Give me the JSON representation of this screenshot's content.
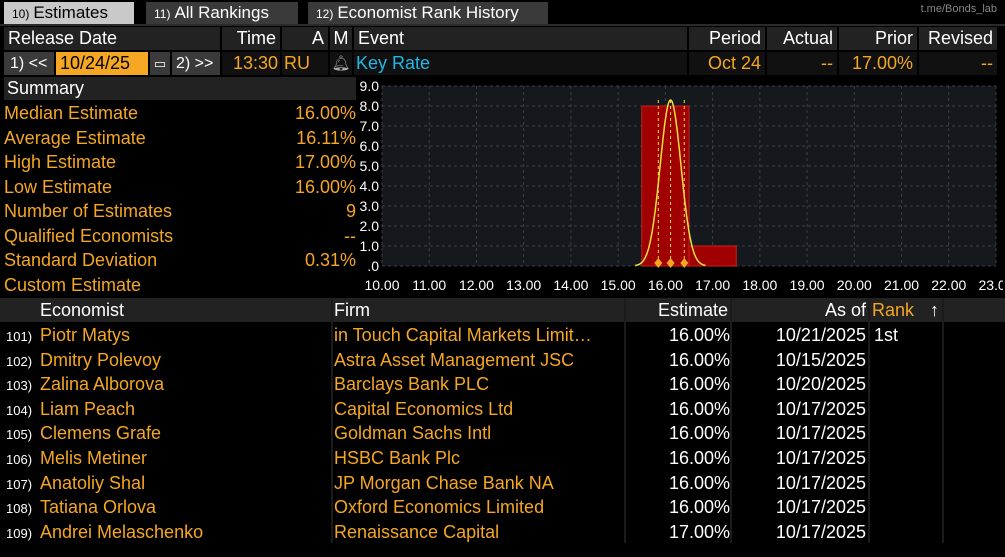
{
  "watermark": "t.me/Bonds_lab",
  "tabs": [
    {
      "num": "10)",
      "label": "Estimates"
    },
    {
      "num": "11)",
      "label": "All Rankings"
    },
    {
      "num": "12)",
      "label": "Economist Rank History"
    }
  ],
  "header": {
    "release_date": "Release Date",
    "time": "Time",
    "a": "A",
    "m": "M",
    "event": "Event",
    "period": "Period",
    "actual": "Actual",
    "prior": "Prior",
    "revised": "Revised"
  },
  "event_row": {
    "prev_btn": "1) <<",
    "date": "10/24/25",
    "next_btn": "2) >>",
    "time": "13:30",
    "country": "RU",
    "event": "Key Rate",
    "period": "Oct 24",
    "actual": "--",
    "prior": "17.00%",
    "revised": "--"
  },
  "summary": {
    "title": "Summary",
    "rows": [
      {
        "label": "Median Estimate",
        "value": "16.00%"
      },
      {
        "label": "Average Estimate",
        "value": "16.11%"
      },
      {
        "label": "High Estimate",
        "value": "17.00%"
      },
      {
        "label": "Low Estimate",
        "value": "16.00%"
      },
      {
        "label": "Number of Estimates",
        "value": "9"
      },
      {
        "label": "Qualified Economists",
        "value": "--"
      },
      {
        "label": "Standard Deviation",
        "value": "0.31%"
      },
      {
        "label": "Custom Estimate",
        "value": ""
      }
    ]
  },
  "chart_data": {
    "type": "bar",
    "y_ticks": [
      "9.0",
      "8.0",
      "7.0",
      "6.0",
      "5.0",
      "4.0",
      "3.0",
      "2.0",
      "1.0",
      ".0"
    ],
    "x_ticks": [
      "10.00",
      "11.00",
      "12.00",
      "13.00",
      "14.00",
      "15.00",
      "16.00",
      "17.00",
      "18.00",
      "19.00",
      "20.00",
      "21.00",
      "22.00",
      "23.00"
    ],
    "ylim": [
      0,
      9
    ],
    "xlim": [
      10,
      23
    ],
    "bars": [
      {
        "from": 15.5,
        "to": 16.5,
        "value": 8
      },
      {
        "from": 16.5,
        "to": 17.5,
        "value": 1
      }
    ],
    "curve_peak": 16.11,
    "markers": [
      15.85,
      16.11,
      16.4
    ],
    "grid": true,
    "colors": {
      "bar": "#a00000",
      "curve": "#f0e040",
      "marker": "#f5a623"
    }
  },
  "table": {
    "columns": {
      "economist": "Economist",
      "firm": "Firm",
      "estimate": "Estimate",
      "as_of": "As of",
      "rank": "Rank",
      "sort": "↑"
    },
    "rows": [
      {
        "num": "101)",
        "economist": "Piotr Matys",
        "firm": "in Touch Capital Markets Limit…",
        "estimate": "16.00%",
        "as_of": "10/21/2025",
        "rank": "1st"
      },
      {
        "num": "102)",
        "economist": "Dmitry Polevoy",
        "firm": "Astra Asset Management JSC",
        "estimate": "16.00%",
        "as_of": "10/15/2025",
        "rank": ""
      },
      {
        "num": "103)",
        "economist": "Zalina Alborova",
        "firm": "Barclays Bank PLC",
        "estimate": "16.00%",
        "as_of": "10/20/2025",
        "rank": ""
      },
      {
        "num": "104)",
        "economist": "Liam Peach",
        "firm": "Capital Economics Ltd",
        "estimate": "16.00%",
        "as_of": "10/17/2025",
        "rank": ""
      },
      {
        "num": "105)",
        "economist": "Clemens Grafe",
        "firm": "Goldman Sachs Intl",
        "estimate": "16.00%",
        "as_of": "10/17/2025",
        "rank": ""
      },
      {
        "num": "106)",
        "economist": "Melis Metiner",
        "firm": "HSBC Bank Plc",
        "estimate": "16.00%",
        "as_of": "10/17/2025",
        "rank": ""
      },
      {
        "num": "107)",
        "economist": "Anatoliy Shal",
        "firm": "JP Morgan Chase Bank NA",
        "estimate": "16.00%",
        "as_of": "10/17/2025",
        "rank": ""
      },
      {
        "num": "108)",
        "economist": "Tatiana Orlova",
        "firm": "Oxford Economics Limited",
        "estimate": "16.00%",
        "as_of": "10/17/2025",
        "rank": ""
      },
      {
        "num": "109)",
        "economist": "Andrei Melaschenko",
        "firm": "Renaissance Capital",
        "estimate": "17.00%",
        "as_of": "10/17/2025",
        "rank": ""
      }
    ]
  }
}
